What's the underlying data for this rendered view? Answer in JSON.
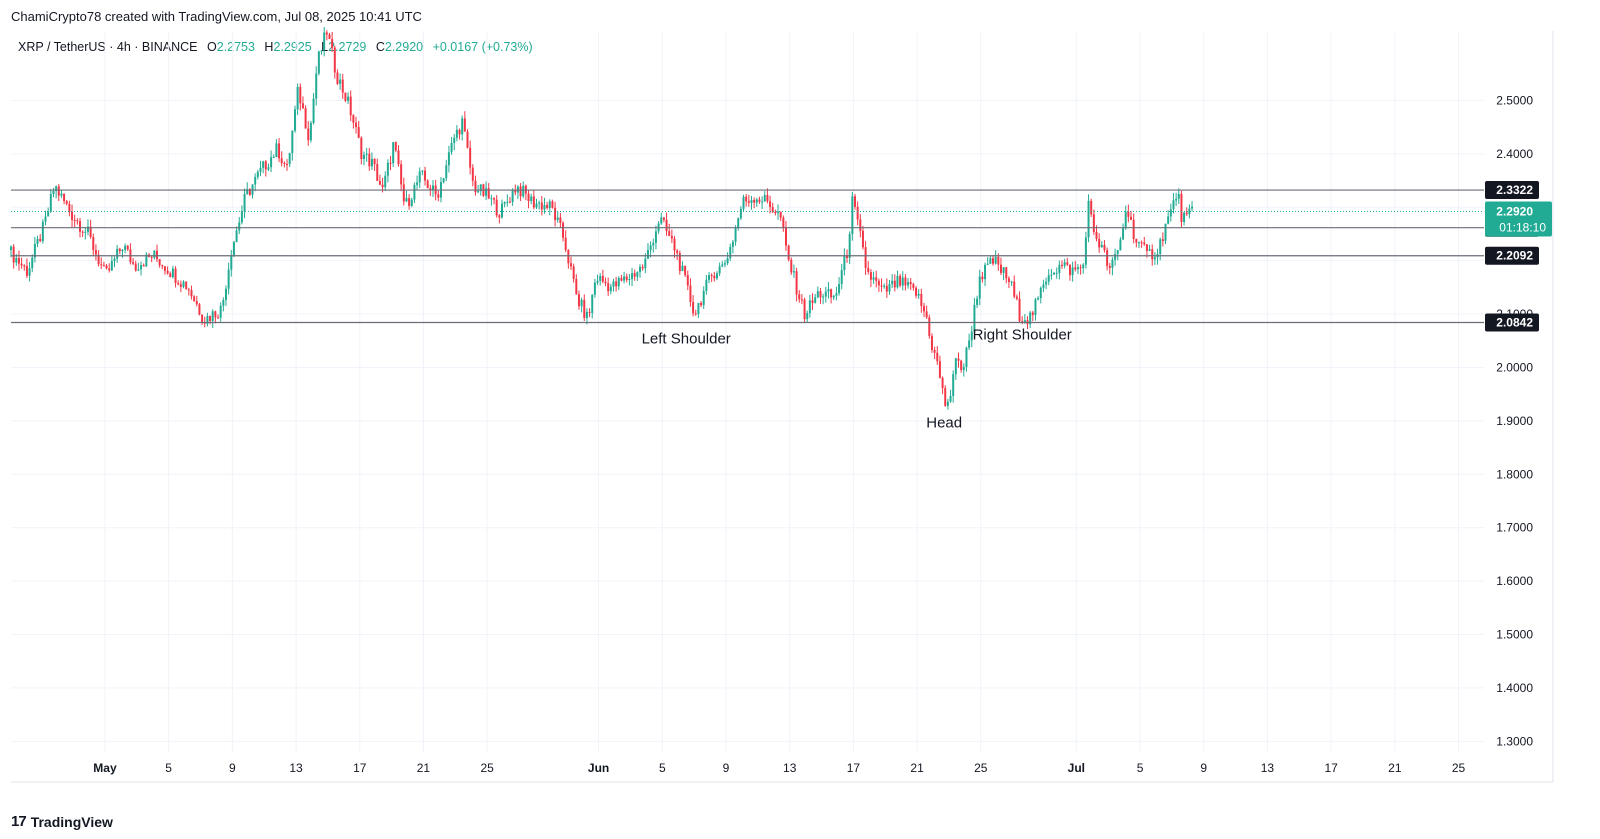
{
  "header": {
    "attribution": "ChamiCrypto78 created with TradingView.com, Jul 08, 2025 10:41 UTC"
  },
  "legend": {
    "symbol": "XRP / TetherUS · 4h · BINANCE",
    "open_label": "O",
    "open": "2.2753",
    "high_label": "H",
    "high": "2.2925",
    "low_label": "L",
    "low": "2.2729",
    "close_label": "C",
    "close": "2.2920",
    "change": "+0.0167 (+0.73%)"
  },
  "footer": {
    "brand": "TradingView",
    "logo_icon": "tradingview-logo-icon"
  },
  "colors": {
    "up": "#22ab94",
    "down": "#f23645",
    "level_line": "#6a6d78",
    "current_price": "#22ab94"
  },
  "chart_data": {
    "type": "candlestick",
    "title": "",
    "ylim": [
      1.28,
      2.63
    ],
    "y_ticks": [
      "2.5000",
      "2.4000",
      "2.3000",
      "2.2000",
      "2.1000",
      "2.0000",
      "1.9000",
      "1.8000",
      "1.7000",
      "1.6000",
      "1.5000",
      "1.4000",
      "1.3000"
    ],
    "x_ticks": [
      "May",
      "5",
      "9",
      "13",
      "17",
      "21",
      "25",
      "Jun",
      "5",
      "9",
      "13",
      "17",
      "21",
      "25",
      "Jul",
      "5",
      "9",
      "13",
      "17",
      "21",
      "25"
    ],
    "x_tick_days": [
      30,
      34,
      38,
      42,
      46,
      50,
      54,
      61,
      65,
      69,
      73,
      77,
      81,
      85,
      91,
      95,
      99,
      103,
      107,
      111,
      115
    ],
    "x_day_range": [
      24.1,
      116.6
    ],
    "horizontal_levels": [
      {
        "value": 2.3322,
        "label": "2.3322"
      },
      {
        "value": 2.2617,
        "label": "2.2617"
      },
      {
        "value": 2.2092,
        "label": "2.2092"
      },
      {
        "value": 2.0842,
        "label": "2.0842"
      }
    ],
    "current_price": {
      "value": 2.292,
      "label": "2.2920",
      "countdown": "01:18:10"
    },
    "annotations": [
      {
        "text": "Left Shoulder",
        "day": 66.5,
        "value": 2.045
      },
      {
        "text": "Head",
        "day": 82.7,
        "value": 1.888
      },
      {
        "text": "Right Shoulder",
        "day": 87.6,
        "value": 2.052
      }
    ],
    "path": [
      [
        24.1,
        2.22
      ],
      [
        25.3,
        2.18
      ],
      [
        26.4,
        2.27
      ],
      [
        27.0,
        2.34
      ],
      [
        28.0,
        2.29
      ],
      [
        29.1,
        2.25
      ],
      [
        30.2,
        2.17
      ],
      [
        31.3,
        2.23
      ],
      [
        32.0,
        2.19
      ],
      [
        33.2,
        2.21
      ],
      [
        34.3,
        2.18
      ],
      [
        35.4,
        2.15
      ],
      [
        36.4,
        2.09
      ],
      [
        37.5,
        2.11
      ],
      [
        38.1,
        2.22
      ],
      [
        39.0,
        2.32
      ],
      [
        40.0,
        2.37
      ],
      [
        41.0,
        2.41
      ],
      [
        41.6,
        2.37
      ],
      [
        42.3,
        2.52
      ],
      [
        43.0,
        2.43
      ],
      [
        43.5,
        2.57
      ],
      [
        44.1,
        2.63
      ],
      [
        44.7,
        2.55
      ],
      [
        45.5,
        2.49
      ],
      [
        46.3,
        2.4
      ],
      [
        47.0,
        2.38
      ],
      [
        47.6,
        2.33
      ],
      [
        48.3,
        2.42
      ],
      [
        49.0,
        2.3
      ],
      [
        50.0,
        2.36
      ],
      [
        51.0,
        2.32
      ],
      [
        52.1,
        2.43
      ],
      [
        52.6,
        2.46
      ],
      [
        53.3,
        2.34
      ],
      [
        54.2,
        2.32
      ],
      [
        55.0,
        2.29
      ],
      [
        56.0,
        2.34
      ],
      [
        57.0,
        2.31
      ],
      [
        58.2,
        2.3
      ],
      [
        59.0,
        2.24
      ],
      [
        59.8,
        2.13
      ],
      [
        60.5,
        2.09
      ],
      [
        61.0,
        2.17
      ],
      [
        62.0,
        2.15
      ],
      [
        63.1,
        2.17
      ],
      [
        64.0,
        2.19
      ],
      [
        65.0,
        2.28
      ],
      [
        66.0,
        2.22
      ],
      [
        66.6,
        2.16
      ],
      [
        67.2,
        2.1
      ],
      [
        67.6,
        2.13
      ],
      [
        68.4,
        2.18
      ],
      [
        69.0,
        2.19
      ],
      [
        69.5,
        2.23
      ],
      [
        70.2,
        2.31
      ],
      [
        71.0,
        2.32
      ],
      [
        71.8,
        2.31
      ],
      [
        72.6,
        2.28
      ],
      [
        73.0,
        2.21
      ],
      [
        73.6,
        2.15
      ],
      [
        74.1,
        2.1
      ],
      [
        75.0,
        2.14
      ],
      [
        76.0,
        2.13
      ],
      [
        76.8,
        2.22
      ],
      [
        77.1,
        2.31
      ],
      [
        77.5,
        2.26
      ],
      [
        78.0,
        2.18
      ],
      [
        79.0,
        2.14
      ],
      [
        80.0,
        2.16
      ],
      [
        81.1,
        2.14
      ],
      [
        81.8,
        2.09
      ],
      [
        82.1,
        2.04
      ],
      [
        82.5,
        2.0
      ],
      [
        82.9,
        1.93
      ],
      [
        83.3,
        1.95
      ],
      [
        83.7,
        2.03
      ],
      [
        84.0,
        1.99
      ],
      [
        84.5,
        2.06
      ],
      [
        85.1,
        2.17
      ],
      [
        86.0,
        2.2
      ],
      [
        87.0,
        2.16
      ],
      [
        87.6,
        2.1
      ],
      [
        88.2,
        2.09
      ],
      [
        88.7,
        2.12
      ],
      [
        89.4,
        2.18
      ],
      [
        90.3,
        2.19
      ],
      [
        91.0,
        2.18
      ],
      [
        91.6,
        2.19
      ],
      [
        91.9,
        2.31
      ],
      [
        92.2,
        2.26
      ],
      [
        92.8,
        2.22
      ],
      [
        93.3,
        2.18
      ],
      [
        93.9,
        2.23
      ],
      [
        94.3,
        2.3
      ],
      [
        94.9,
        2.24
      ],
      [
        95.6,
        2.21
      ],
      [
        96.3,
        2.22
      ],
      [
        96.8,
        2.27
      ],
      [
        97.1,
        2.29
      ],
      [
        97.5,
        2.33
      ],
      [
        97.8,
        2.28
      ],
      [
        98.2,
        2.28
      ],
      [
        98.4,
        2.292
      ]
    ]
  }
}
